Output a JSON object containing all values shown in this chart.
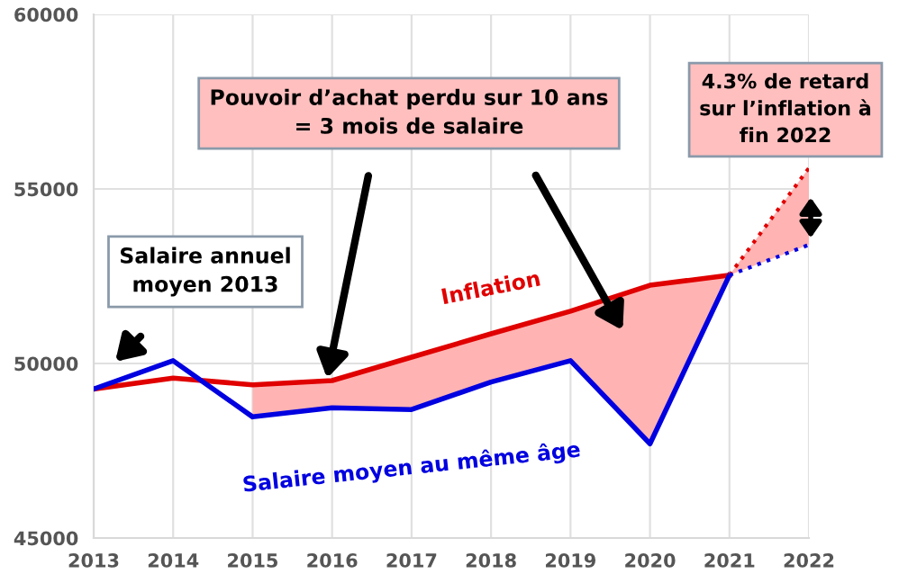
{
  "chart_data": {
    "type": "line",
    "series": [
      {
        "name": "Inflation",
        "color": "#e00000",
        "x": [
          2013,
          2014,
          2015,
          2016,
          2017,
          2018,
          2019,
          2020,
          2021
        ],
        "values": [
          49270,
          49580,
          49390,
          49510,
          50180,
          50850,
          51500,
          52240,
          52530
        ]
      },
      {
        "name": "Salaire moyen au même âge",
        "color": "#0000e0",
        "x": [
          2013,
          2014,
          2015,
          2016,
          2017,
          2018,
          2019,
          2020,
          2021
        ],
        "values": [
          49270,
          50080,
          48470,
          48730,
          48680,
          49470,
          50080,
          47700,
          52530
        ],
        "lower": [
          null,
          null,
          48470,
          48730,
          48680,
          49470,
          50080,
          47700,
          52530
        ],
        "upper": [
          null,
          null,
          49390,
          49510,
          50180,
          50850,
          51500,
          52240,
          52530
        ]
      },
      {
        "color": "#e00000",
        "x": [
          2021,
          2022
        ],
        "values": [
          52530,
          55600
        ],
        "line_style": "dotted"
      },
      {
        "color": "#0000e0",
        "x": [
          2021,
          2022
        ],
        "values": [
          52530,
          53400
        ],
        "line_style": "dotted",
        "lower": [
          52530,
          53400
        ],
        "upper": [
          52530,
          55600
        ]
      }
    ],
    "xlim": [
      2013,
      2022
    ],
    "xticks": [
      2013,
      2014,
      2015,
      2016,
      2017,
      2018,
      2019,
      2020,
      2021,
      2022
    ],
    "ylim": [
      45000,
      60000
    ],
    "yticks": [
      45000,
      50000,
      55000,
      60000
    ],
    "grid": true,
    "line_style": "solid",
    "marker": "none",
    "legend": false,
    "annotations": [
      "Salaire annuel\nmoyen 2013",
      "Pouvoir d’achat perdu sur 10 ans\n= 3 mois de salaire",
      "4.3% de retard\nsur l’inflation à\nfin 2022"
    ]
  }
}
